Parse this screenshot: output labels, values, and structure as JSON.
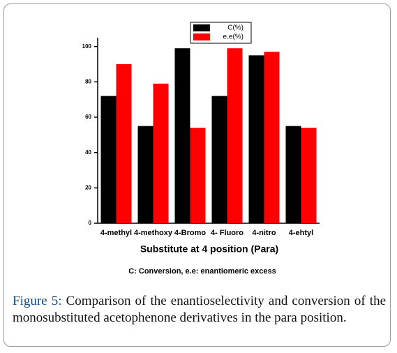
{
  "chart_data": {
    "type": "bar",
    "categories": [
      "4-methyl",
      "4-methoxy",
      "4-Bromo",
      "4- Fluoro",
      "4-nitro",
      "4-ehtyl"
    ],
    "series": [
      {
        "name": "C(%)",
        "color": "#000000",
        "values": [
          72,
          55,
          99,
          72,
          95,
          55
        ]
      },
      {
        "name": "e.e(%)",
        "color": "#ff0000",
        "values": [
          90,
          79,
          54,
          99,
          97,
          54
        ]
      }
    ],
    "ylim": [
      0,
      105
    ],
    "yticks": [
      0,
      20,
      40,
      60,
      80,
      100
    ],
    "x_label": "Substitute at 4 position (Para)",
    "note": "C: Conversion, e.e: enantiomeric excess",
    "legend": "top",
    "caption": {
      "label": "Figure 5:",
      "text": "Comparison of the enantioselectivity and conversion of the monosubstituted acetophenone derivatives in the para position."
    }
  }
}
